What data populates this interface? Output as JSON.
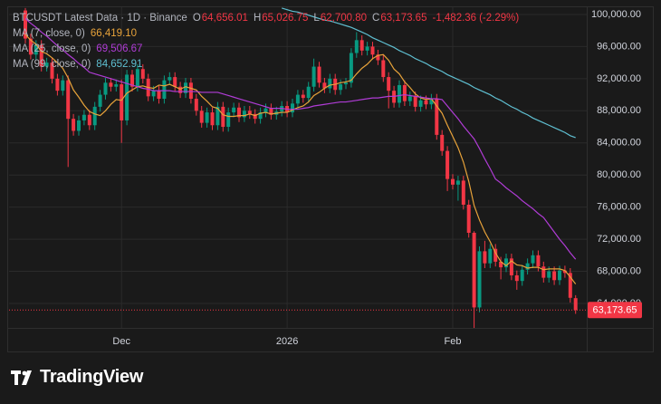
{
  "chart_data": {
    "type": "candlestick",
    "title": "BTCUSDT Latest Data · 1D · Binance",
    "last_bar": {
      "items": [
        {
          "prefix": "O",
          "label": "64,656.01"
        },
        {
          "prefix": "H",
          "label": "65,026.75"
        },
        {
          "prefix": "L",
          "label": "62,700.80"
        },
        {
          "prefix": "C",
          "label": "63,173.65"
        }
      ],
      "change": -1482.36,
      "change_label": "-1,482.36",
      "change_pct": -2.29,
      "change_pct_label": "(-2.29%)"
    },
    "last_price_label": "63,173.65",
    "up_color": "#089981",
    "down_color": "#f23645",
    "categories": [
      null,
      null,
      null,
      null,
      null,
      null,
      null,
      null,
      null,
      null,
      null,
      null,
      null,
      null,
      null,
      null,
      null,
      null,
      "Dec",
      null,
      null,
      null,
      null,
      null,
      null,
      null,
      null,
      null,
      null,
      null,
      null,
      null,
      null,
      null,
      null,
      null,
      null,
      null,
      null,
      null,
      null,
      null,
      null,
      null,
      null,
      null,
      null,
      null,
      null,
      "2026",
      null,
      null,
      null,
      null,
      null,
      null,
      null,
      null,
      null,
      null,
      null,
      null,
      null,
      null,
      null,
      null,
      null,
      null,
      null,
      null,
      null,
      null,
      null,
      null,
      null,
      null,
      null,
      null,
      null,
      null,
      "Feb",
      null,
      null,
      null,
      null,
      null,
      null,
      null,
      null,
      null,
      null,
      null,
      null,
      null,
      null,
      null,
      null,
      null,
      null,
      null,
      null,
      null,
      null,
      null
    ],
    "series": {
      "open": [
        100500,
        97000,
        95000,
        96200,
        93500,
        94000,
        92000,
        90500,
        91800,
        87000,
        85500,
        86800,
        87500,
        86200,
        88500,
        90000,
        91500,
        91000,
        91300,
        86800,
        92500,
        91000,
        93200,
        92000,
        89800,
        90500,
        89500,
        91800,
        92200,
        91000,
        90200,
        91500,
        89500,
        88000,
        86500,
        87800,
        86200,
        88500,
        86000,
        87800,
        88400,
        87200,
        88000,
        87600,
        87000,
        87800,
        88300,
        87500,
        87900,
        88600,
        87800,
        88900,
        90000,
        89600,
        91000,
        93500,
        91500,
        90800,
        92000,
        90600,
        91300,
        91500,
        95200,
        96800,
        95500,
        96000,
        95000,
        94300,
        92200,
        90500,
        89000,
        91200,
        89200,
        89800,
        88500,
        89300,
        88800,
        89500,
        85000,
        83000,
        79500,
        78800,
        79300,
        76300,
        72800,
        63500,
        70500,
        69000,
        70800,
        69200,
        68500,
        69600,
        67500,
        66800,
        68200,
        69000,
        70000,
        68600,
        67200,
        68000,
        66900,
        68100,
        67800,
        64656.01
      ],
      "high": [
        100800,
        97600,
        96800,
        96800,
        94600,
        94600,
        92600,
        92400,
        92400,
        87600,
        87400,
        88100,
        88100,
        89100,
        90600,
        92100,
        92100,
        91900,
        91900,
        93100,
        93100,
        93800,
        93800,
        92600,
        91100,
        91100,
        92400,
        92800,
        92800,
        91600,
        92100,
        92100,
        90100,
        88600,
        88400,
        88400,
        89100,
        89100,
        88400,
        89000,
        89000,
        88600,
        88600,
        88200,
        88400,
        88900,
        88900,
        88500,
        89200,
        89200,
        89500,
        90600,
        90600,
        91600,
        94500,
        94100,
        92100,
        92600,
        92600,
        91900,
        92100,
        95800,
        97800,
        97400,
        96600,
        96600,
        95600,
        94900,
        92800,
        91100,
        91800,
        91800,
        90400,
        90400,
        89900,
        89900,
        90100,
        90100,
        85600,
        83600,
        80100,
        79900,
        79900,
        76900,
        73000,
        71100,
        71800,
        71400,
        71400,
        69800,
        70200,
        70200,
        68100,
        68800,
        69600,
        70600,
        70600,
        69200,
        68600,
        68600,
        68700,
        68700,
        68400,
        65026.75
      ],
      "low": [
        96400,
        94400,
        94400,
        92900,
        92900,
        91400,
        89900,
        89900,
        81000,
        84900,
        84900,
        86200,
        85600,
        85600,
        87900,
        89400,
        90400,
        90400,
        84000,
        86200,
        90400,
        90400,
        91400,
        89200,
        89200,
        88900,
        88900,
        91200,
        90400,
        89600,
        89600,
        88900,
        87400,
        85900,
        85900,
        85600,
        85600,
        85400,
        85400,
        87200,
        86600,
        86600,
        87000,
        86400,
        86400,
        87200,
        86900,
        86900,
        87300,
        87200,
        87200,
        88300,
        89000,
        89000,
        90400,
        90900,
        90200,
        90200,
        90000,
        90000,
        90700,
        90900,
        94600,
        94900,
        94900,
        94400,
        93700,
        91600,
        88300,
        88400,
        88400,
        88600,
        88600,
        87900,
        87900,
        88200,
        88200,
        84400,
        82400,
        78000,
        78200,
        76800,
        75700,
        72200,
        60900,
        62900,
        68400,
        68400,
        68600,
        67000,
        67900,
        66900,
        65700,
        66200,
        67600,
        68400,
        68000,
        66600,
        66600,
        66300,
        66300,
        67200,
        64100,
        62700.8
      ],
      "close": [
        97000,
        95000,
        96200,
        93500,
        94000,
        92000,
        90500,
        91800,
        87000,
        85500,
        86800,
        87500,
        86200,
        88500,
        90000,
        91500,
        91000,
        91300,
        86800,
        92500,
        91000,
        93200,
        92000,
        89800,
        90500,
        89500,
        91800,
        92200,
        91000,
        90200,
        91500,
        89500,
        88000,
        86500,
        87800,
        86200,
        88500,
        86000,
        87800,
        88400,
        87200,
        88000,
        87600,
        87000,
        87800,
        88300,
        87500,
        87900,
        88600,
        87800,
        88900,
        90000,
        89600,
        91000,
        93500,
        91500,
        90800,
        92000,
        90600,
        91300,
        91500,
        95200,
        96800,
        95500,
        96000,
        95000,
        94300,
        92200,
        90500,
        89000,
        91200,
        89200,
        89800,
        88500,
        89300,
        88800,
        89500,
        85000,
        83000,
        79500,
        78800,
        79300,
        76300,
        72800,
        63500,
        70500,
        69000,
        70800,
        69200,
        68500,
        69600,
        67500,
        66800,
        68200,
        69000,
        70000,
        68600,
        67200,
        68000,
        66900,
        68100,
        67800,
        64700,
        63173.65
      ]
    },
    "indicators": [
      {
        "name": "MA (7, close, 0)",
        "color": "#e8a33a",
        "last_label": "66,419.10",
        "values": [
          97500,
          96800,
          96300,
          95400,
          95100,
          94600,
          94000,
          93300,
          92100,
          90600,
          89700,
          88700,
          87900,
          87600,
          87400,
          88000,
          88800,
          89400,
          89300,
          90200,
          90600,
          91000,
          91100,
          90900,
          90800,
          91200,
          91100,
          91300,
          91000,
          90700,
          91000,
          90800,
          90600,
          89800,
          89200,
          88500,
          88300,
          87500,
          87300,
          87300,
          87400,
          87400,
          87600,
          87400,
          87700,
          87800,
          87600,
          87700,
          87800,
          87800,
          88100,
          88400,
          88600,
          89100,
          89900,
          90300,
          90800,
          91200,
          91300,
          91500,
          91600,
          91800,
          92600,
          93300,
          93800,
          94500,
          94900,
          95000,
          94300,
          93200,
          92600,
          91600,
          90900,
          90100,
          89600,
          89400,
          89500,
          88600,
          87700,
          86200,
          84800,
          83400,
          81600,
          79200,
          76200,
          74400,
          72900,
          71700,
          70300,
          69200,
          68700,
          69300,
          68800,
          68700,
          68400,
          68500,
          68500,
          68200,
          68300,
          68300,
          68300,
          68100,
          67300,
          66419.1
        ]
      },
      {
        "name": "MA (25, close, 0)",
        "color": "#b03cd6",
        "last_label": "69,506.67",
        "values": [
          99500,
          98900,
          98400,
          97800,
          97300,
          96700,
          96100,
          95600,
          95000,
          94500,
          93900,
          93400,
          92800,
          92600,
          92400,
          92200,
          92000,
          91800,
          91600,
          91400,
          91200,
          91000,
          90800,
          90700,
          90500,
          90500,
          90500,
          90500,
          90400,
          90400,
          90400,
          90400,
          90400,
          90300,
          90300,
          90300,
          90300,
          90100,
          89900,
          89700,
          89500,
          89300,
          89100,
          88900,
          88700,
          88500,
          88300,
          88300,
          88300,
          88200,
          88200,
          88200,
          88300,
          88400,
          88600,
          88700,
          88800,
          88900,
          89000,
          89100,
          89100,
          89200,
          89300,
          89400,
          89500,
          89600,
          89600,
          89700,
          89800,
          89800,
          89900,
          90000,
          89900,
          89800,
          89700,
          89600,
          89500,
          89500,
          89400,
          88600,
          87800,
          87000,
          86100,
          85300,
          84500,
          83300,
          82000,
          80800,
          79500,
          79000,
          78400,
          77900,
          77400,
          76800,
          76300,
          75800,
          75200,
          74700,
          73800,
          72900,
          72000,
          71200,
          70300,
          69506.67
        ]
      },
      {
        "name": "MA (99, close, 0)",
        "color": "#5fbfd1",
        "last_label": "84,652.91",
        "values": [
          null,
          null,
          null,
          null,
          null,
          null,
          null,
          null,
          null,
          null,
          null,
          null,
          null,
          null,
          null,
          null,
          null,
          null,
          null,
          null,
          null,
          null,
          null,
          null,
          null,
          null,
          null,
          null,
          null,
          null,
          null,
          null,
          null,
          null,
          null,
          null,
          null,
          null,
          null,
          null,
          null,
          null,
          null,
          null,
          null,
          null,
          null,
          null,
          100800,
          100600,
          100400,
          100300,
          100100,
          99900,
          99700,
          99500,
          99300,
          99200,
          99000,
          98800,
          98600,
          98400,
          98100,
          97800,
          97500,
          97100,
          96800,
          96500,
          96200,
          95900,
          95500,
          95200,
          94900,
          94500,
          94200,
          93900,
          93500,
          93200,
          92900,
          92500,
          92200,
          91900,
          91600,
          91300,
          90900,
          90600,
          90300,
          90000,
          89600,
          89300,
          88900,
          88500,
          88200,
          87800,
          87500,
          87100,
          86800,
          86500,
          86200,
          85900,
          85600,
          85300,
          84900,
          84652.91
        ]
      }
    ],
    "ylim": [
      60950,
      100900
    ],
    "yticks": [
      {
        "value": 100000,
        "label": "100,000.00"
      },
      {
        "value": 96000,
        "label": "96,000.00"
      },
      {
        "value": 92000,
        "label": "92,000.00"
      },
      {
        "value": 88000,
        "label": "88,000.00"
      },
      {
        "value": 84000,
        "label": "84,000.00"
      },
      {
        "value": 80000,
        "label": "80,000.00"
      },
      {
        "value": 76000,
        "label": "76,000.00"
      },
      {
        "value": 72000,
        "label": "72,000.00"
      },
      {
        "value": 68000,
        "label": "68,000.00"
      },
      {
        "value": 64000,
        "label": "64,000.00"
      }
    ],
    "grid": true,
    "brand": "TradingView"
  }
}
